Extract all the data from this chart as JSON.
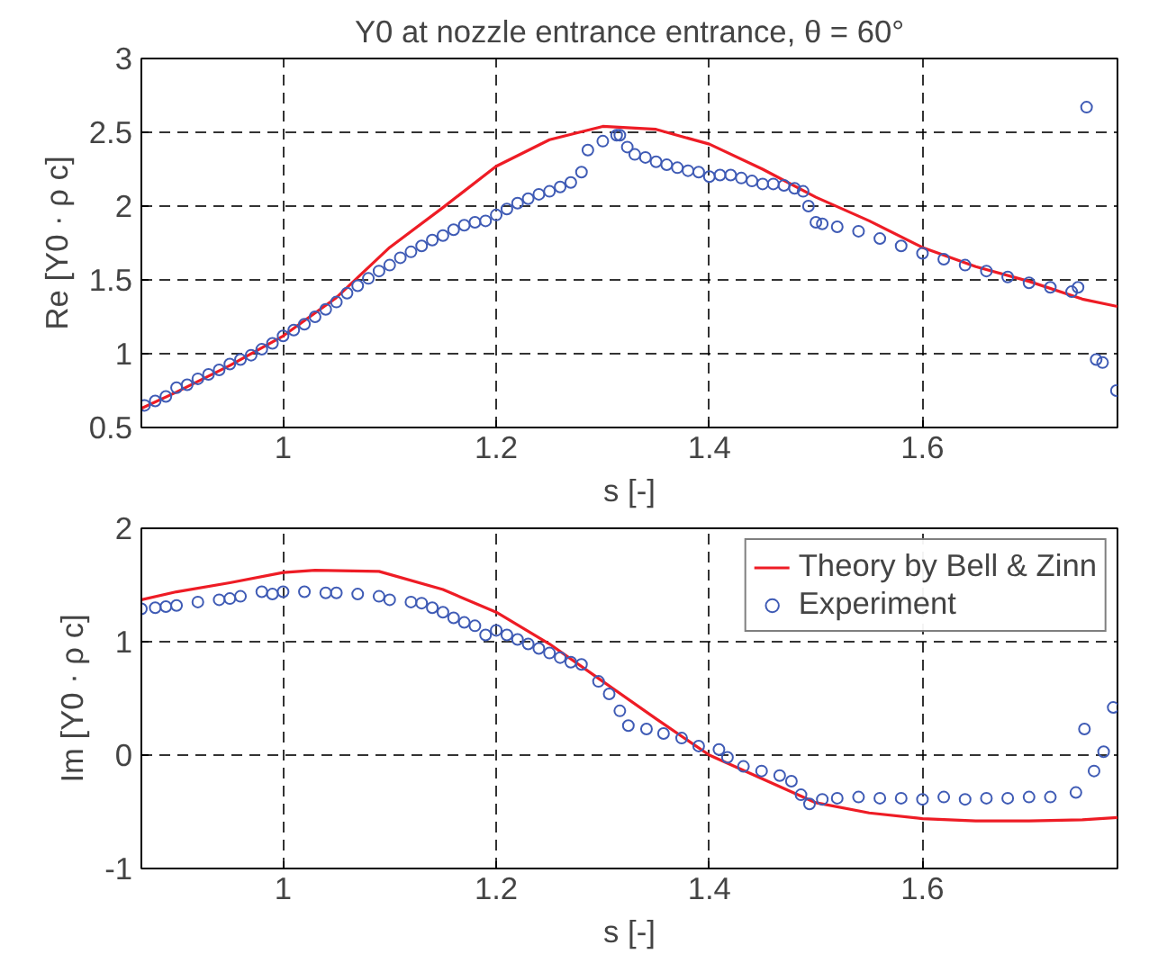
{
  "chart_data": [
    {
      "type": "line",
      "title": "Y0 at nozzle entrance entrance, θ = 60°",
      "xlabel": "s [-]",
      "ylabel": "Re [Y0 · ρ c]",
      "xlim": [
        0.867,
        1.783
      ],
      "xticks": [
        1,
        1.2,
        1.4,
        1.6
      ],
      "ylim": [
        0.5,
        3
      ],
      "yticks": [
        0.5,
        1,
        1.5,
        2,
        2.5,
        3
      ],
      "grid": true,
      "legend": false,
      "series": [
        {
          "color": "#ee1c25",
          "line_style": "solid",
          "x": [
            0.867,
            0.9,
            0.95,
            1.0,
            1.05,
            1.1,
            1.15,
            1.2,
            1.25,
            1.3,
            1.35,
            1.4,
            1.45,
            1.5,
            1.55,
            1.6,
            1.65,
            1.7,
            1.75,
            1.783
          ],
          "values": [
            0.63,
            0.74,
            0.92,
            1.12,
            1.38,
            1.72,
            1.99,
            2.27,
            2.45,
            2.54,
            2.52,
            2.42,
            2.25,
            2.06,
            1.9,
            1.72,
            1.59,
            1.49,
            1.37,
            1.32
          ]
        },
        {
          "type": "scatter",
          "marker": "circle",
          "color": "#3f5bb5",
          "x": [
            0.87,
            0.88,
            0.89,
            0.9,
            0.91,
            0.92,
            0.93,
            0.94,
            0.95,
            0.96,
            0.97,
            0.98,
            0.99,
            1.0,
            1.01,
            1.02,
            1.03,
            1.04,
            1.05,
            1.06,
            1.07,
            1.08,
            1.09,
            1.1,
            1.11,
            1.12,
            1.13,
            1.14,
            1.15,
            1.16,
            1.17,
            1.18,
            1.19,
            1.2,
            1.21,
            1.22,
            1.23,
            1.24,
            1.25,
            1.26,
            1.27,
            1.28,
            1.286,
            1.3,
            1.313,
            1.316,
            1.323,
            1.33,
            1.34,
            1.35,
            1.36,
            1.37,
            1.38,
            1.39,
            1.4,
            1.41,
            1.42,
            1.43,
            1.44,
            1.45,
            1.46,
            1.47,
            1.48,
            1.488,
            1.493,
            1.5,
            1.506,
            1.52,
            1.54,
            1.56,
            1.58,
            1.6,
            1.62,
            1.64,
            1.66,
            1.68,
            1.7,
            1.72,
            1.74,
            1.746,
            1.754,
            1.763,
            1.769,
            1.782
          ],
          "values": [
            0.65,
            0.68,
            0.71,
            0.77,
            0.79,
            0.83,
            0.86,
            0.89,
            0.93,
            0.96,
            0.99,
            1.03,
            1.07,
            1.12,
            1.16,
            1.2,
            1.25,
            1.3,
            1.35,
            1.41,
            1.46,
            1.51,
            1.56,
            1.6,
            1.65,
            1.69,
            1.73,
            1.77,
            1.8,
            1.84,
            1.87,
            1.89,
            1.9,
            1.94,
            1.98,
            2.02,
            2.05,
            2.08,
            2.1,
            2.13,
            2.16,
            2.23,
            2.38,
            2.44,
            2.48,
            2.48,
            2.4,
            2.35,
            2.33,
            2.3,
            2.28,
            2.26,
            2.24,
            2.23,
            2.2,
            2.21,
            2.21,
            2.19,
            2.17,
            2.15,
            2.15,
            2.14,
            2.12,
            2.1,
            2.0,
            1.89,
            1.88,
            1.86,
            1.83,
            1.78,
            1.73,
            1.68,
            1.64,
            1.6,
            1.56,
            1.52,
            1.48,
            1.45,
            1.42,
            1.45,
            2.67,
            0.96,
            0.94,
            0.75
          ]
        }
      ]
    },
    {
      "type": "line",
      "xlabel": "s [-]",
      "ylabel": "Im [Y0 · ρ c]",
      "xlim": [
        0.867,
        1.783
      ],
      "xticks": [
        1,
        1.2,
        1.4,
        1.6
      ],
      "ylim": [
        -1,
        2
      ],
      "yticks": [
        -1,
        0,
        1,
        2
      ],
      "grid": true,
      "legend": "top right",
      "series": [
        {
          "name": "Theory by Bell & Zinn",
          "color": "#ee1c25",
          "line_style": "solid",
          "x": [
            0.867,
            0.9,
            0.95,
            1.0,
            1.03,
            1.09,
            1.15,
            1.2,
            1.25,
            1.3,
            1.35,
            1.4,
            1.45,
            1.5,
            1.55,
            1.6,
            1.65,
            1.7,
            1.75,
            1.783
          ],
          "values": [
            1.37,
            1.44,
            1.52,
            1.61,
            1.63,
            1.62,
            1.46,
            1.26,
            0.98,
            0.65,
            0.32,
            0.0,
            -0.21,
            -0.42,
            -0.51,
            -0.56,
            -0.58,
            -0.58,
            -0.57,
            -0.55
          ]
        },
        {
          "type": "scatter",
          "name": "Experiment",
          "marker": "circle",
          "color": "#3f5bb5",
          "x": [
            0.867,
            0.88,
            0.89,
            0.9,
            0.92,
            0.94,
            0.95,
            0.96,
            0.98,
            0.99,
            1.0,
            1.02,
            1.04,
            1.05,
            1.07,
            1.09,
            1.1,
            1.12,
            1.13,
            1.14,
            1.15,
            1.16,
            1.17,
            1.18,
            1.19,
            1.2,
            1.21,
            1.22,
            1.23,
            1.24,
            1.25,
            1.26,
            1.27,
            1.28,
            1.296,
            1.306,
            1.316,
            1.324,
            1.341,
            1.357,
            1.374,
            1.39,
            1.409,
            1.417,
            1.432,
            1.449,
            1.466,
            1.477,
            1.486,
            1.494,
            1.506,
            1.52,
            1.54,
            1.56,
            1.58,
            1.6,
            1.62,
            1.64,
            1.66,
            1.68,
            1.7,
            1.72,
            1.744,
            1.752,
            1.761,
            1.77,
            1.779
          ],
          "values": [
            1.29,
            1.3,
            1.31,
            1.32,
            1.35,
            1.37,
            1.38,
            1.4,
            1.44,
            1.42,
            1.44,
            1.44,
            1.43,
            1.43,
            1.42,
            1.4,
            1.37,
            1.35,
            1.34,
            1.3,
            1.26,
            1.21,
            1.17,
            1.14,
            1.06,
            1.1,
            1.06,
            1.02,
            0.98,
            0.94,
            0.9,
            0.86,
            0.82,
            0.8,
            0.65,
            0.54,
            0.39,
            0.26,
            0.23,
            0.19,
            0.15,
            0.08,
            0.05,
            -0.02,
            -0.1,
            -0.14,
            -0.18,
            -0.23,
            -0.35,
            -0.43,
            -0.39,
            -0.38,
            -0.37,
            -0.38,
            -0.38,
            -0.39,
            -0.37,
            -0.39,
            -0.38,
            -0.38,
            -0.37,
            -0.37,
            -0.33,
            0.23,
            -0.14,
            0.03,
            0.42
          ]
        }
      ]
    }
  ]
}
